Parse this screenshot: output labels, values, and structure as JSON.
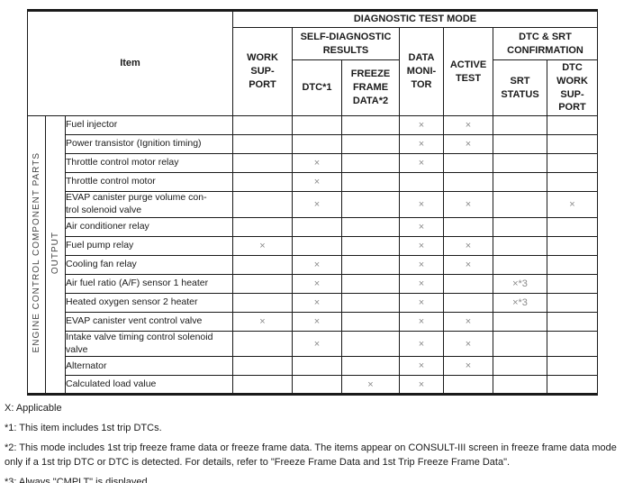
{
  "table": {
    "title": "DIAGNOSTIC TEST MODE",
    "item_header": "Item",
    "headers": {
      "work_support": "WORK\nSUP-\nPORT",
      "self_diagnostic_results": "SELF-DIAGNOSTIC\nRESULTS",
      "dtc": "DTC*1",
      "freeze_frame_data": "FREEZE\nFRAME\nDATA*2",
      "data_monitor": "DATA\nMONI-\nTOR",
      "active_test": "ACTIVE\nTEST",
      "dtc_srt_confirmation": "DTC & SRT\nCONFIRMATION",
      "srt_status": "SRT\nSTATUS",
      "dtc_work_support": "DTC\nWORK\nSUP-\nPORT"
    },
    "column_ids": [
      "work-support",
      "dtc",
      "freeze-frame-data",
      "data-monitor",
      "active-test",
      "srt-status",
      "dtc-work-support"
    ],
    "row_groups": {
      "outer": "ENGINE CONTROL COMPONENT PARTS",
      "inner": "OUTPUT"
    },
    "mark_symbol": "×",
    "rows": [
      {
        "item": "Fuel injector",
        "marks": [
          "",
          "",
          "",
          "×",
          "×",
          "",
          ""
        ]
      },
      {
        "item": "Power transistor (Ignition timing)",
        "marks": [
          "",
          "",
          "",
          "×",
          "×",
          "",
          ""
        ]
      },
      {
        "item": "Throttle control motor relay",
        "marks": [
          "",
          "×",
          "",
          "×",
          "",
          "",
          ""
        ]
      },
      {
        "item": "Throttle control motor",
        "marks": [
          "",
          "×",
          "",
          "",
          "",
          "",
          ""
        ]
      },
      {
        "item": "EVAP canister purge volume con-\ntrol solenoid valve",
        "marks": [
          "",
          "×",
          "",
          "×",
          "×",
          "",
          "×"
        ]
      },
      {
        "item": "Air conditioner relay",
        "marks": [
          "",
          "",
          "",
          "×",
          "",
          "",
          ""
        ]
      },
      {
        "item": "Fuel pump relay",
        "marks": [
          "×",
          "",
          "",
          "×",
          "×",
          "",
          ""
        ]
      },
      {
        "item": "Cooling fan relay",
        "marks": [
          "",
          "×",
          "",
          "×",
          "×",
          "",
          ""
        ]
      },
      {
        "item": "Air fuel ratio (A/F) sensor 1 heater",
        "marks": [
          "",
          "×",
          "",
          "×",
          "",
          "×*3",
          ""
        ]
      },
      {
        "item": "Heated oxygen sensor 2 heater",
        "marks": [
          "",
          "×",
          "",
          "×",
          "",
          "×*3",
          ""
        ]
      },
      {
        "item": "EVAP canister vent control valve",
        "marks": [
          "×",
          "×",
          "",
          "×",
          "×",
          "",
          ""
        ]
      },
      {
        "item": "Intake valve timing control solenoid\nvalve",
        "marks": [
          "",
          "×",
          "",
          "×",
          "×",
          "",
          ""
        ]
      },
      {
        "item": "Alternator",
        "marks": [
          "",
          "",
          "",
          "×",
          "×",
          "",
          ""
        ]
      },
      {
        "item": "Calculated load value",
        "marks": [
          "",
          "",
          "×",
          "×",
          "",
          "",
          ""
        ]
      }
    ]
  },
  "footnotes": [
    "X: Applicable",
    "*1: This item includes 1st trip DTCs.",
    "*2: This mode includes 1st trip freeze frame data or freeze frame data. The items appear on CONSULT-III screen in freeze frame data mode only if a 1st trip DTC or DTC is detected. For details, refer to \"Freeze Frame Data and 1st Trip Freeze Frame Data\".",
    "*3: Always \"CMPLT\" is displayed."
  ],
  "colors": {
    "border": "#1a1a1a",
    "mark": "#8a8a8a",
    "vertical_label": "#444444"
  }
}
